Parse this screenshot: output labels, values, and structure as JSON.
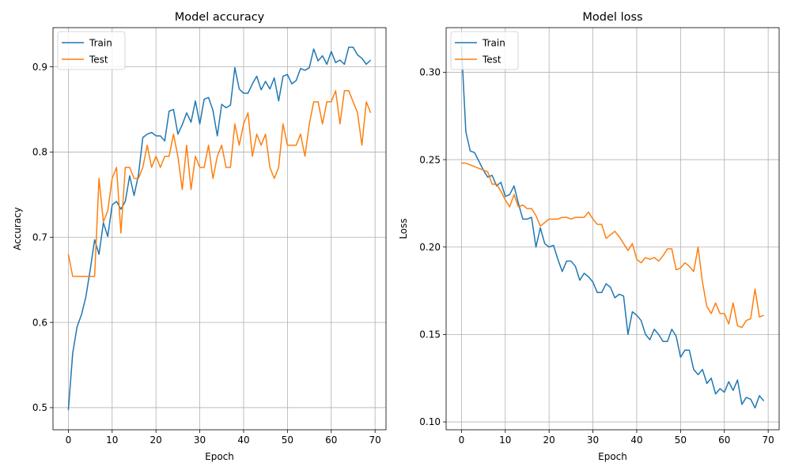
{
  "chart_data": [
    {
      "type": "line",
      "title": "Model accuracy",
      "xlabel": "Epoch",
      "ylabel": "Accuracy",
      "xlim": [
        -3.5,
        72.5
      ],
      "ylim": [
        0.474,
        0.946
      ],
      "xticks": [
        0,
        10,
        20,
        30,
        40,
        50,
        60,
        70
      ],
      "yticks": [
        0.5,
        0.6,
        0.7,
        0.8,
        0.9
      ],
      "ytick_labels": [
        "0.5",
        "0.6",
        "0.7",
        "0.8",
        "0.9"
      ],
      "grid": true,
      "legend": "top-left",
      "series": [
        {
          "name": "Train",
          "color": "#1f77b4",
          "values": [
            0.497,
            0.564,
            0.595,
            0.609,
            0.63,
            0.662,
            0.697,
            0.68,
            0.717,
            0.701,
            0.738,
            0.742,
            0.733,
            0.742,
            0.772,
            0.749,
            0.773,
            0.817,
            0.821,
            0.823,
            0.819,
            0.819,
            0.813,
            0.848,
            0.85,
            0.821,
            0.832,
            0.846,
            0.835,
            0.86,
            0.833,
            0.862,
            0.864,
            0.849,
            0.819,
            0.856,
            0.852,
            0.855,
            0.899,
            0.874,
            0.869,
            0.869,
            0.88,
            0.889,
            0.873,
            0.883,
            0.874,
            0.887,
            0.86,
            0.889,
            0.891,
            0.88,
            0.884,
            0.898,
            0.896,
            0.899,
            0.921,
            0.907,
            0.913,
            0.903,
            0.918,
            0.905,
            0.908,
            0.903,
            0.923,
            0.923,
            0.914,
            0.91,
            0.903,
            0.908
          ]
        },
        {
          "name": "Test",
          "color": "#ff7f0e",
          "values": [
            0.68,
            0.654,
            0.654,
            0.654,
            0.654,
            0.654,
            0.654,
            0.769,
            0.718,
            0.731,
            0.769,
            0.782,
            0.705,
            0.782,
            0.782,
            0.769,
            0.769,
            0.782,
            0.808,
            0.782,
            0.795,
            0.782,
            0.795,
            0.795,
            0.821,
            0.795,
            0.756,
            0.808,
            0.756,
            0.795,
            0.782,
            0.782,
            0.808,
            0.769,
            0.795,
            0.808,
            0.782,
            0.782,
            0.833,
            0.808,
            0.833,
            0.846,
            0.795,
            0.821,
            0.808,
            0.821,
            0.782,
            0.769,
            0.782,
            0.833,
            0.808,
            0.808,
            0.808,
            0.821,
            0.795,
            0.833,
            0.859,
            0.859,
            0.833,
            0.859,
            0.859,
            0.872,
            0.833,
            0.872,
            0.872,
            0.859,
            0.846,
            0.808,
            0.859,
            0.846
          ]
        }
      ]
    },
    {
      "type": "line",
      "title": "Model loss",
      "xlabel": "Epoch",
      "ylabel": "Loss",
      "xlim": [
        -3.5,
        72.5
      ],
      "ylim": [
        0.0955,
        0.3255
      ],
      "xticks": [
        0,
        10,
        20,
        30,
        40,
        50,
        60,
        70
      ],
      "yticks": [
        0.1,
        0.15,
        0.2,
        0.25,
        0.3
      ],
      "ytick_labels": [
        "0.10",
        "0.15",
        "0.20",
        "0.25",
        "0.30"
      ],
      "grid": true,
      "legend": "top-left",
      "series": [
        {
          "name": "Train",
          "color": "#1f77b4",
          "values": [
            0.315,
            0.266,
            0.255,
            0.254,
            0.249,
            0.244,
            0.24,
            0.241,
            0.235,
            0.237,
            0.229,
            0.23,
            0.235,
            0.225,
            0.216,
            0.216,
            0.217,
            0.2,
            0.211,
            0.202,
            0.2,
            0.201,
            0.193,
            0.186,
            0.192,
            0.192,
            0.189,
            0.181,
            0.185,
            0.183,
            0.18,
            0.174,
            0.174,
            0.179,
            0.177,
            0.171,
            0.173,
            0.172,
            0.15,
            0.163,
            0.161,
            0.158,
            0.15,
            0.147,
            0.153,
            0.15,
            0.146,
            0.146,
            0.153,
            0.149,
            0.137,
            0.141,
            0.141,
            0.13,
            0.127,
            0.13,
            0.122,
            0.125,
            0.116,
            0.119,
            0.117,
            0.123,
            0.118,
            0.124,
            0.11,
            0.114,
            0.113,
            0.108,
            0.115,
            0.112
          ]
        },
        {
          "name": "Test",
          "color": "#ff7f0e",
          "values": [
            0.248,
            0.248,
            0.247,
            0.246,
            0.245,
            0.244,
            0.243,
            0.236,
            0.236,
            0.232,
            0.227,
            0.223,
            0.23,
            0.223,
            0.224,
            0.222,
            0.222,
            0.218,
            0.212,
            0.214,
            0.216,
            0.216,
            0.216,
            0.217,
            0.217,
            0.216,
            0.217,
            0.217,
            0.217,
            0.22,
            0.216,
            0.213,
            0.213,
            0.205,
            0.207,
            0.209,
            0.206,
            0.202,
            0.198,
            0.202,
            0.193,
            0.191,
            0.194,
            0.193,
            0.194,
            0.192,
            0.195,
            0.199,
            0.199,
            0.187,
            0.188,
            0.191,
            0.189,
            0.186,
            0.2,
            0.18,
            0.166,
            0.162,
            0.168,
            0.162,
            0.162,
            0.156,
            0.168,
            0.155,
            0.154,
            0.158,
            0.159,
            0.176,
            0.16,
            0.161
          ]
        }
      ]
    }
  ]
}
